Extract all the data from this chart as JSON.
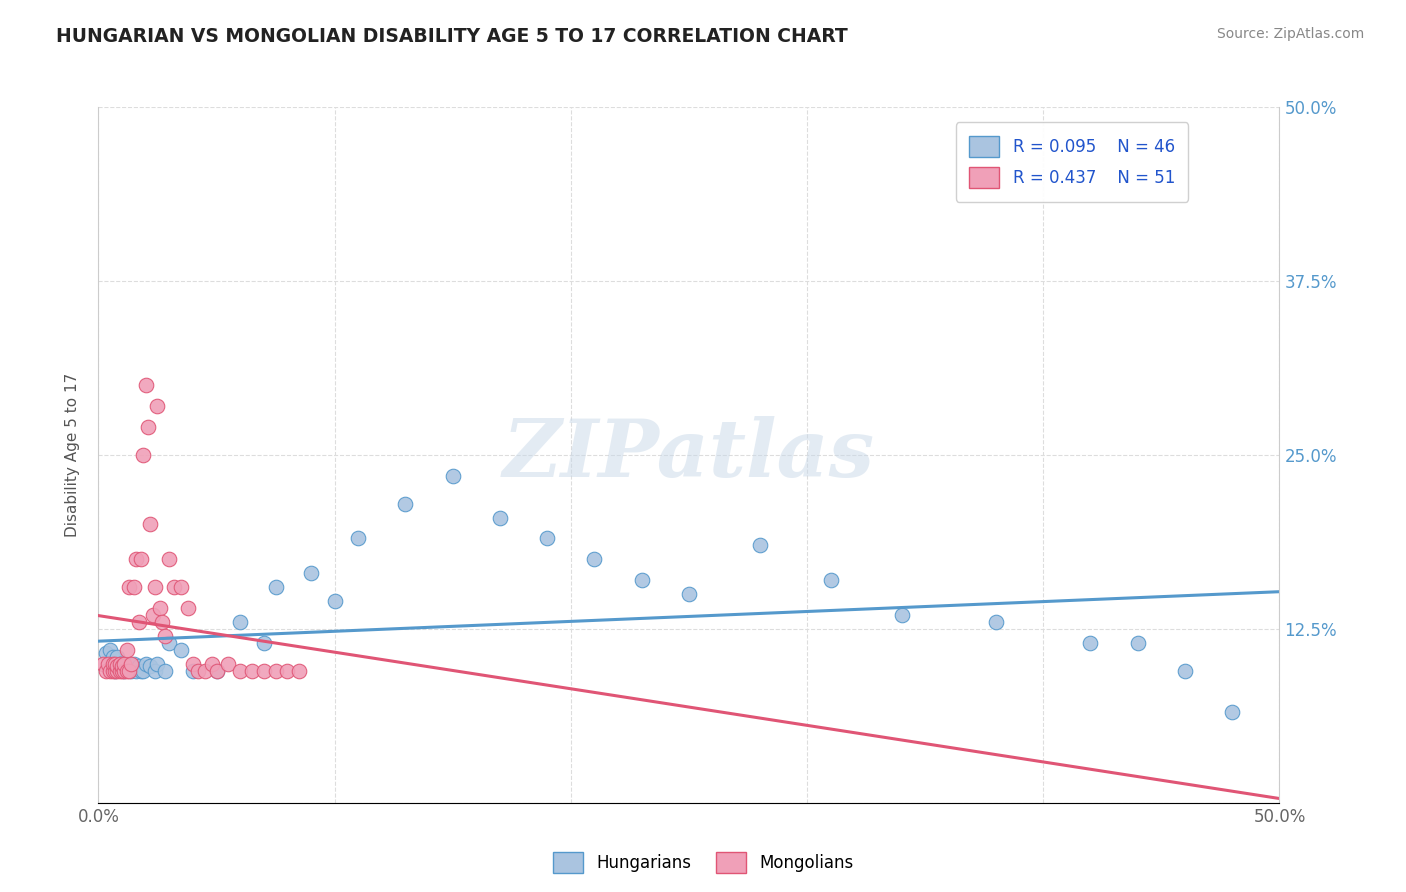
{
  "title": "HUNGARIAN VS MONGOLIAN DISABILITY AGE 5 TO 17 CORRELATION CHART",
  "source": "Source: ZipAtlas.com",
  "ylabel": "Disability Age 5 to 17",
  "xlim": [
    0.0,
    0.5
  ],
  "ylim": [
    0.0,
    0.5
  ],
  "xticks": [
    0.0,
    0.1,
    0.2,
    0.3,
    0.4,
    0.5
  ],
  "yticks": [
    0.0,
    0.125,
    0.25,
    0.375,
    0.5
  ],
  "hungarian_R": "0.095",
  "hungarian_N": "46",
  "mongolian_R": "0.437",
  "mongolian_N": "51",
  "hungarian_color": "#aac4e0",
  "mongolian_color": "#f0a0b8",
  "hungarian_line_color": "#5599cc",
  "mongolian_line_color": "#e05575",
  "background_color": "#ffffff",
  "grid_color": "#dddddd",
  "hungarian_scatter_x": [
    0.003,
    0.005,
    0.006,
    0.007,
    0.008,
    0.009,
    0.01,
    0.011,
    0.012,
    0.013,
    0.014,
    0.015,
    0.016,
    0.017,
    0.018,
    0.019,
    0.02,
    0.022,
    0.024,
    0.025,
    0.028,
    0.03,
    0.035,
    0.04,
    0.05,
    0.06,
    0.07,
    0.075,
    0.09,
    0.1,
    0.11,
    0.13,
    0.15,
    0.17,
    0.19,
    0.21,
    0.23,
    0.25,
    0.28,
    0.31,
    0.34,
    0.38,
    0.42,
    0.44,
    0.46,
    0.48
  ],
  "hungarian_scatter_y": [
    0.108,
    0.11,
    0.105,
    0.095,
    0.105,
    0.1,
    0.1,
    0.095,
    0.1,
    0.098,
    0.095,
    0.1,
    0.095,
    0.098,
    0.095,
    0.095,
    0.1,
    0.098,
    0.095,
    0.1,
    0.095,
    0.115,
    0.11,
    0.095,
    0.095,
    0.13,
    0.115,
    0.155,
    0.165,
    0.145,
    0.19,
    0.215,
    0.235,
    0.205,
    0.19,
    0.175,
    0.16,
    0.15,
    0.185,
    0.16,
    0.135,
    0.13,
    0.115,
    0.115,
    0.095,
    0.065
  ],
  "mongolian_scatter_x": [
    0.002,
    0.003,
    0.004,
    0.005,
    0.006,
    0.006,
    0.007,
    0.007,
    0.008,
    0.008,
    0.009,
    0.009,
    0.01,
    0.01,
    0.011,
    0.011,
    0.012,
    0.012,
    0.013,
    0.013,
    0.014,
    0.015,
    0.016,
    0.017,
    0.018,
    0.019,
    0.02,
    0.021,
    0.022,
    0.023,
    0.024,
    0.025,
    0.026,
    0.027,
    0.028,
    0.03,
    0.032,
    0.035,
    0.038,
    0.04,
    0.042,
    0.045,
    0.048,
    0.05,
    0.055,
    0.06,
    0.065,
    0.07,
    0.075,
    0.08,
    0.085
  ],
  "mongolian_scatter_y": [
    0.1,
    0.095,
    0.1,
    0.095,
    0.095,
    0.1,
    0.095,
    0.1,
    0.095,
    0.098,
    0.095,
    0.1,
    0.095,
    0.098,
    0.095,
    0.1,
    0.11,
    0.095,
    0.155,
    0.095,
    0.1,
    0.155,
    0.175,
    0.13,
    0.175,
    0.25,
    0.3,
    0.27,
    0.2,
    0.135,
    0.155,
    0.285,
    0.14,
    0.13,
    0.12,
    0.175,
    0.155,
    0.155,
    0.14,
    0.1,
    0.095,
    0.095,
    0.1,
    0.095,
    0.1,
    0.095,
    0.095,
    0.095,
    0.095,
    0.095,
    0.095
  ]
}
